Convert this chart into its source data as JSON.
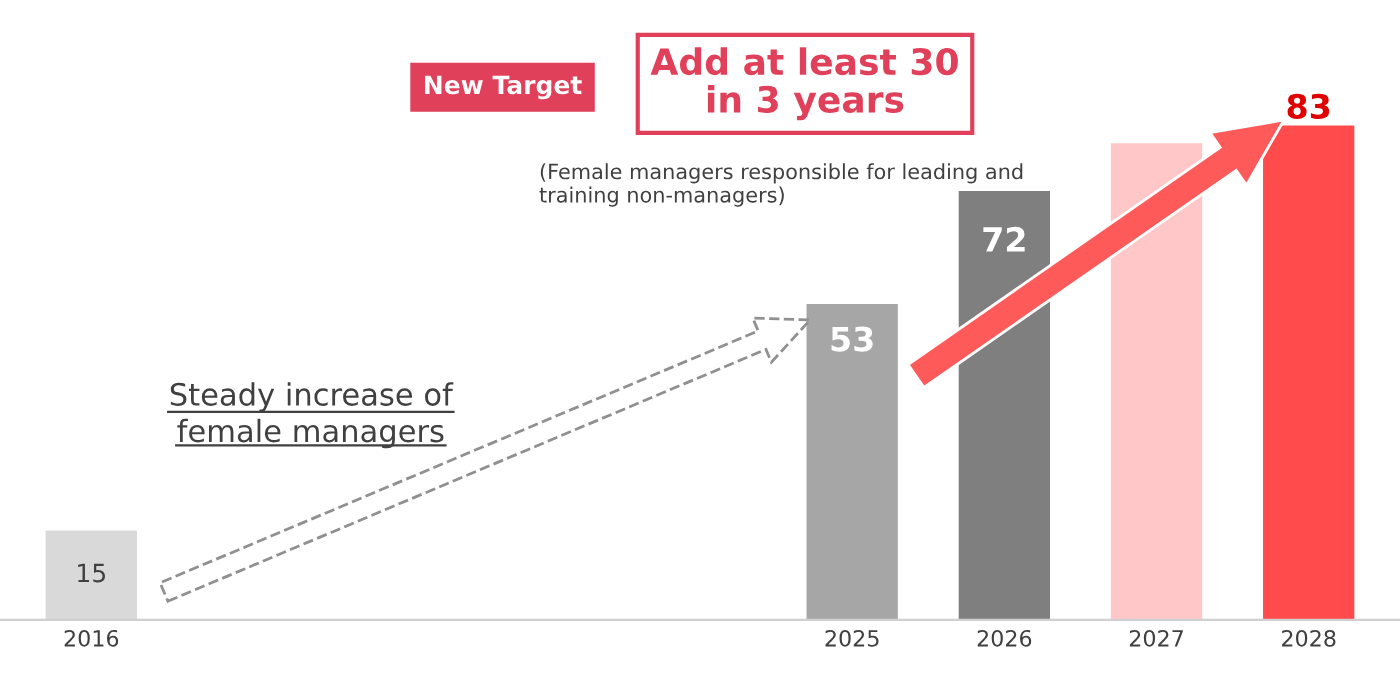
{
  "chart_data": {
    "type": "bar",
    "categories": [
      "2016",
      null,
      null,
      null,
      null,
      "2025",
      "2026",
      "2027",
      "2028"
    ],
    "values": [
      15,
      null,
      null,
      null,
      null,
      53,
      72,
      80,
      83
    ],
    "colors": [
      "#d9d9d9",
      "#ffffff",
      "#ffffff",
      "#ffffff",
      "#ffffff",
      "#a6a6a6",
      "#7f7f7f",
      "#ffc7c7",
      "#ff4b4b"
    ],
    "value_labels": [
      "15",
      null,
      null,
      null,
      null,
      "53",
      "72",
      null,
      "83"
    ],
    "annotations": [
      "New Target",
      "Add at least 30\nin 3 years",
      "(Female managers responsible for leading and\ntraining non-managers)",
      "Steady increase of\nfemale managers"
    ],
    "grid": false,
    "legend": false
  }
}
